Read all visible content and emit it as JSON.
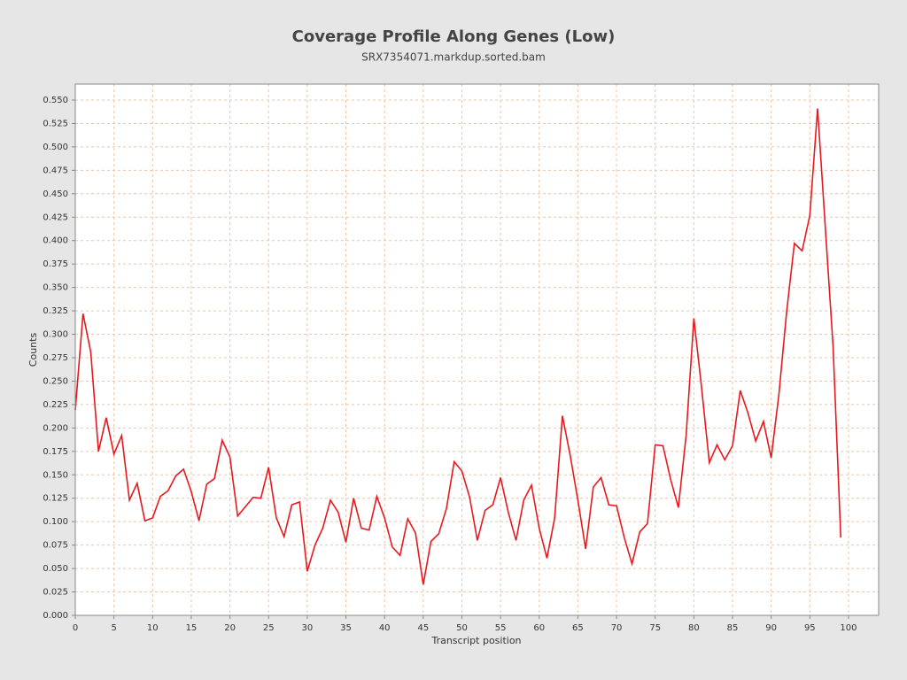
{
  "chart_data": {
    "type": "line",
    "title": "Coverage Profile Along Genes (Low)",
    "subtitle": "SRX7354071.markdup.sorted.bam",
    "x_label": "Transcript position",
    "y_label": "Counts",
    "color": "#e8191e",
    "grid": true,
    "x": [
      0,
      1,
      2,
      3,
      4,
      5,
      6,
      7,
      8,
      9,
      10,
      11,
      12,
      13,
      14,
      15,
      16,
      17,
      18,
      19,
      20,
      21,
      22,
      23,
      24,
      25,
      26,
      27,
      28,
      29,
      30,
      31,
      32,
      33,
      34,
      35,
      36,
      37,
      38,
      39,
      40,
      41,
      42,
      43,
      44,
      45,
      46,
      47,
      48,
      49,
      50,
      51,
      52,
      53,
      54,
      55,
      56,
      57,
      58,
      59,
      60,
      61,
      62,
      63,
      64,
      65,
      66,
      67,
      68,
      69,
      70,
      71,
      72,
      73,
      74,
      75,
      76,
      77,
      78,
      79,
      80,
      81,
      82,
      83,
      84,
      85,
      86,
      87,
      88,
      89,
      90,
      91,
      92,
      93,
      94,
      95,
      96,
      97,
      98,
      99
    ],
    "values": [
      0.219,
      0.322,
      0.281,
      0.175,
      0.211,
      0.172,
      0.192,
      0.123,
      0.141,
      0.101,
      0.104,
      0.127,
      0.133,
      0.149,
      0.156,
      0.132,
      0.101,
      0.14,
      0.146,
      0.187,
      0.169,
      0.106,
      0.116,
      0.126,
      0.125,
      0.158,
      0.104,
      0.084,
      0.118,
      0.121,
      0.047,
      0.075,
      0.093,
      0.123,
      0.11,
      0.078,
      0.125,
      0.093,
      0.091,
      0.127,
      0.104,
      0.073,
      0.064,
      0.103,
      0.088,
      0.033,
      0.079,
      0.087,
      0.114,
      0.164,
      0.154,
      0.126,
      0.08,
      0.112,
      0.118,
      0.147,
      0.11,
      0.08,
      0.123,
      0.139,
      0.093,
      0.061,
      0.104,
      0.213,
      0.171,
      0.123,
      0.071,
      0.137,
      0.147,
      0.118,
      0.117,
      0.083,
      0.055,
      0.089,
      0.098,
      0.182,
      0.181,
      0.145,
      0.115,
      0.192,
      0.317,
      0.243,
      0.163,
      0.182,
      0.166,
      0.181,
      0.24,
      0.216,
      0.186,
      0.207,
      0.168,
      0.236,
      0.324,
      0.397,
      0.389,
      0.427,
      0.541,
      0.414,
      0.288,
      0.083
    ],
    "xlim": [
      0,
      103.9
    ],
    "ylim": [
      0,
      0.567
    ],
    "xticks": [
      0,
      5,
      10,
      15,
      20,
      25,
      30,
      35,
      40,
      45,
      50,
      55,
      60,
      65,
      70,
      75,
      80,
      85,
      90,
      95,
      100
    ],
    "yticks": [
      {
        "value": 0,
        "label": "0.000"
      },
      {
        "value": 0.025,
        "label": "0.025"
      },
      {
        "value": 0.05,
        "label": "0.050"
      },
      {
        "value": 0.075,
        "label": "0.075"
      },
      {
        "value": 0.1,
        "label": "0.100"
      },
      {
        "value": 0.125,
        "label": "0.125"
      },
      {
        "value": 0.15,
        "label": "0.150"
      },
      {
        "value": 0.175,
        "label": "0.175"
      },
      {
        "value": 0.2,
        "label": "0.200"
      },
      {
        "value": 0.225,
        "label": "0.225"
      },
      {
        "value": 0.25,
        "label": "0.250"
      },
      {
        "value": 0.275,
        "label": "0.275"
      },
      {
        "value": 0.3,
        "label": "0.300"
      },
      {
        "value": 0.325,
        "label": "0.325"
      },
      {
        "value": 0.35,
        "label": "0.350"
      },
      {
        "value": 0.375,
        "label": "0.375"
      },
      {
        "value": 0.4,
        "label": "0.400"
      },
      {
        "value": 0.425,
        "label": "0.425"
      },
      {
        "value": 0.45,
        "label": "0.450"
      },
      {
        "value": 0.475,
        "label": "0.475"
      },
      {
        "value": 0.5,
        "label": "0.500"
      },
      {
        "value": 0.525,
        "label": "0.525"
      },
      {
        "value": 0.55,
        "label": "0.550"
      }
    ]
  }
}
